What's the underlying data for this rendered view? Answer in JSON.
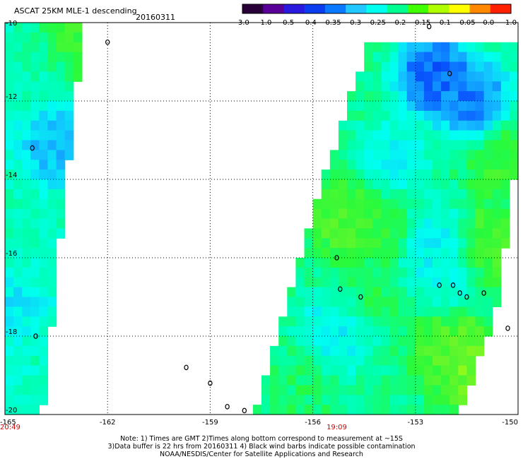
{
  "chart_data": {
    "type": "heatmap",
    "title": "ASCAT 25KM MLE-1 descending",
    "date": "20160311",
    "xlim": [
      -165,
      -150
    ],
    "ylim": [
      -20,
      -10
    ],
    "x_ticks": [
      "-165",
      "-162",
      "-159",
      "-156",
      "-153",
      "-150"
    ],
    "x_tick_values": [
      -165,
      -162,
      -159,
      -156,
      -153,
      -150
    ],
    "y_ticks": [
      "-10",
      "-12",
      "-14",
      "-16",
      "-18",
      "-20"
    ],
    "y_tick_values": [
      -10,
      -12,
      -14,
      -16,
      -18,
      -20
    ],
    "grid": "dotted",
    "times": [
      {
        "label": "20:49",
        "lon": -165
      },
      {
        "label": "19:09",
        "lon": -155.3
      }
    ],
    "colorbar": {
      "position": "top-right",
      "labels": [
        "-3.0",
        "-1.0",
        "-0.5",
        "-0.4",
        "-0.35",
        "-0.3",
        "-0.25",
        "-0.2",
        "-0.15",
        "-0.1",
        "-0.05",
        "0.0",
        "1.0"
      ],
      "colors": [
        "#2a0038",
        "#5a0098",
        "#2a1ae0",
        "#0a3cf0",
        "#0a78ff",
        "#20c8ff",
        "#00ffee",
        "#00ff90",
        "#40ff00",
        "#b0ff00",
        "#ffff00",
        "#ff8800",
        "#ff2000"
      ]
    },
    "swaths": [
      {
        "name": "west",
        "corners": [
          [
            -165,
            -10
          ],
          [
            -162.7,
            -10
          ],
          [
            -163.9,
            -20
          ],
          [
            -165,
            -20
          ]
        ],
        "zones": [
          {
            "lat": -10.5,
            "lon": -163.0,
            "value": -0.17
          },
          {
            "lat": -11.2,
            "lon": -164.0,
            "value": -0.26
          },
          {
            "lat": -13.1,
            "lon": -163.5,
            "value": -0.36
          },
          {
            "lat": -15.5,
            "lon": -164.2,
            "value": -0.27
          },
          {
            "lat": -17.5,
            "lon": -164.6,
            "value": -0.33
          },
          {
            "lat": -18.2,
            "lon": -164.0,
            "value": -0.26
          },
          {
            "lat": -19.4,
            "lon": -164.7,
            "value": -0.28
          }
        ],
        "base": -0.26
      },
      {
        "name": "east",
        "corners": [
          [
            -154.4,
            -10.6
          ],
          [
            -150.1,
            -10.6
          ],
          [
            -150.1,
            -13.8
          ],
          [
            -150.6,
            -17.3
          ],
          [
            -151.7,
            -20
          ],
          [
            -157.7,
            -20
          ],
          [
            -155.7,
            -14
          ]
        ],
        "zones": [
          {
            "lat": -11.3,
            "lon": -152.5,
            "value": -0.42
          },
          {
            "lat": -12.0,
            "lon": -151.3,
            "value": -0.4
          },
          {
            "lat": -13.5,
            "lon": -150.4,
            "value": -0.18
          },
          {
            "lat": -13.6,
            "lon": -153.7,
            "value": -0.31
          },
          {
            "lat": -15.0,
            "lon": -155.0,
            "value": -0.16
          },
          {
            "lat": -15.2,
            "lon": -153.8,
            "value": -0.19
          },
          {
            "lat": -15.6,
            "lon": -152.6,
            "value": -0.32
          },
          {
            "lat": -16.2,
            "lon": -152.0,
            "value": -0.3
          },
          {
            "lat": -15.8,
            "lon": -150.9,
            "value": -0.16
          },
          {
            "lat": -16.8,
            "lon": -154.5,
            "value": -0.21
          },
          {
            "lat": -17.9,
            "lon": -155.3,
            "value": -0.32
          },
          {
            "lat": -18.4,
            "lon": -152.2,
            "value": -0.17
          },
          {
            "lat": -18.7,
            "lon": -151.4,
            "value": -0.13
          },
          {
            "lat": -19.3,
            "lon": -156.4,
            "value": -0.22
          },
          {
            "lat": -19.5,
            "lon": -153.8,
            "value": -0.24
          }
        ],
        "base": -0.24
      }
    ],
    "land": [
      {
        "lon": -164.2,
        "lat": -13.2
      },
      {
        "lon": -162.0,
        "lat": -10.5
      },
      {
        "lon": -164.1,
        "lat": -18.0
      },
      {
        "lon": -159.7,
        "lat": -18.8
      },
      {
        "lon": -159.0,
        "lat": -19.2
      },
      {
        "lon": -155.2,
        "lat": -16.8
      },
      {
        "lon": -154.6,
        "lat": -17.0
      },
      {
        "lon": -155.3,
        "lat": -16.0
      },
      {
        "lon": -152.3,
        "lat": -16.7
      },
      {
        "lon": -151.9,
        "lat": -16.7
      },
      {
        "lon": -151.7,
        "lat": -16.9
      },
      {
        "lon": -151.5,
        "lat": -17.0
      },
      {
        "lon": -151.0,
        "lat": -16.9
      },
      {
        "lon": -150.3,
        "lat": -17.8
      },
      {
        "lon": -152.6,
        "lat": -10.1
      },
      {
        "lon": -152.0,
        "lat": -11.3
      },
      {
        "lon": -158.5,
        "lat": -19.8
      },
      {
        "lon": -158.0,
        "lat": -19.9
      }
    ]
  },
  "notes": [
    "Note: 1) Times are GMT 2)Times along bottom correspond to measurement at ~15S",
    "3)Data buffer is 22 hrs from 20160311 4) Black wind barbs indicate possible contamination",
    "NOAA/NESDIS/Center for Satellite Applications and Research"
  ]
}
